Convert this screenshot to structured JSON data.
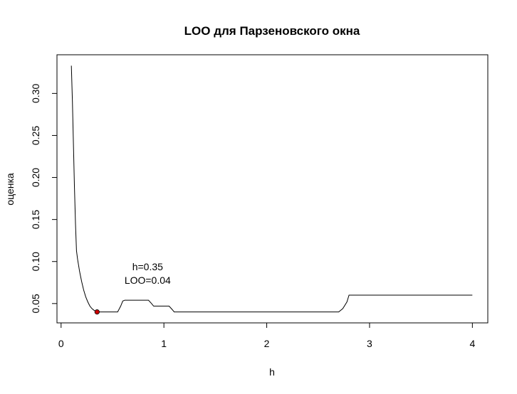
{
  "chart_data": {
    "type": "line",
    "title": "LOO для Парзеновского окна",
    "xlabel": "h",
    "ylabel": "оценка",
    "xlim": [
      -0.04,
      4.15
    ],
    "ylim": [
      0.027,
      0.346
    ],
    "xticks": [
      0,
      1,
      2,
      3,
      4
    ],
    "xtick_labels": [
      "0",
      "1",
      "2",
      "3",
      "4"
    ],
    "yticks": [
      0.05,
      0.1,
      0.15,
      0.2,
      0.25,
      0.3
    ],
    "ytick_labels": [
      "0.05",
      "0.10",
      "0.15",
      "0.20",
      "0.25",
      "0.30"
    ],
    "grid": false,
    "series": [
      {
        "color": "#000000",
        "x": [
          0.1,
          0.11,
          0.12,
          0.13,
          0.14,
          0.15,
          0.16,
          0.18,
          0.2,
          0.22,
          0.24,
          0.26,
          0.28,
          0.3,
          0.32,
          0.34,
          0.35,
          0.4,
          0.45,
          0.5,
          0.55,
          0.58,
          0.6,
          0.62,
          0.85,
          0.88,
          0.9,
          1.05,
          1.08,
          1.1,
          2.7,
          2.74,
          2.78,
          2.8,
          4.0
        ],
        "y": [
          0.333,
          0.29,
          0.24,
          0.19,
          0.145,
          0.113,
          0.103,
          0.088,
          0.076,
          0.066,
          0.058,
          0.052,
          0.047,
          0.044,
          0.042,
          0.041,
          0.04,
          0.04,
          0.04,
          0.04,
          0.04,
          0.047,
          0.053,
          0.054,
          0.054,
          0.05,
          0.047,
          0.047,
          0.043,
          0.04,
          0.04,
          0.044,
          0.052,
          0.06,
          0.06
        ]
      }
    ],
    "highlight_point": {
      "x": 0.35,
      "y": 0.04,
      "color": "#cc0000"
    },
    "annotation": {
      "line1": "h=0.35",
      "line2": "LOO=0.04"
    }
  }
}
